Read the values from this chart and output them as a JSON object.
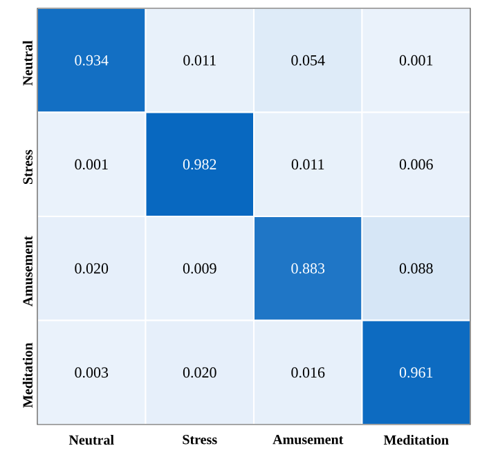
{
  "chart_data": {
    "type": "heatmap",
    "categories": [
      "Neutral",
      "Stress",
      "Amusement",
      "Meditation"
    ],
    "y_categories": [
      "Neutral",
      "Stress",
      "Amusement",
      "Meditation"
    ],
    "cells": [
      [
        0.934,
        0.011,
        0.054,
        0.001
      ],
      [
        0.001,
        0.982,
        0.011,
        0.006
      ],
      [
        0.02,
        0.009,
        0.883,
        0.088
      ],
      [
        0.003,
        0.02,
        0.016,
        0.961
      ]
    ],
    "cell_labels": [
      [
        "0.934",
        "0.011",
        "0.054",
        "0.001"
      ],
      [
        "0.001",
        "0.982",
        "0.011",
        "0.006"
      ],
      [
        "0.020",
        "0.009",
        "0.883",
        "0.088"
      ],
      [
        "0.003",
        "0.020",
        "0.016",
        "0.961"
      ]
    ]
  }
}
